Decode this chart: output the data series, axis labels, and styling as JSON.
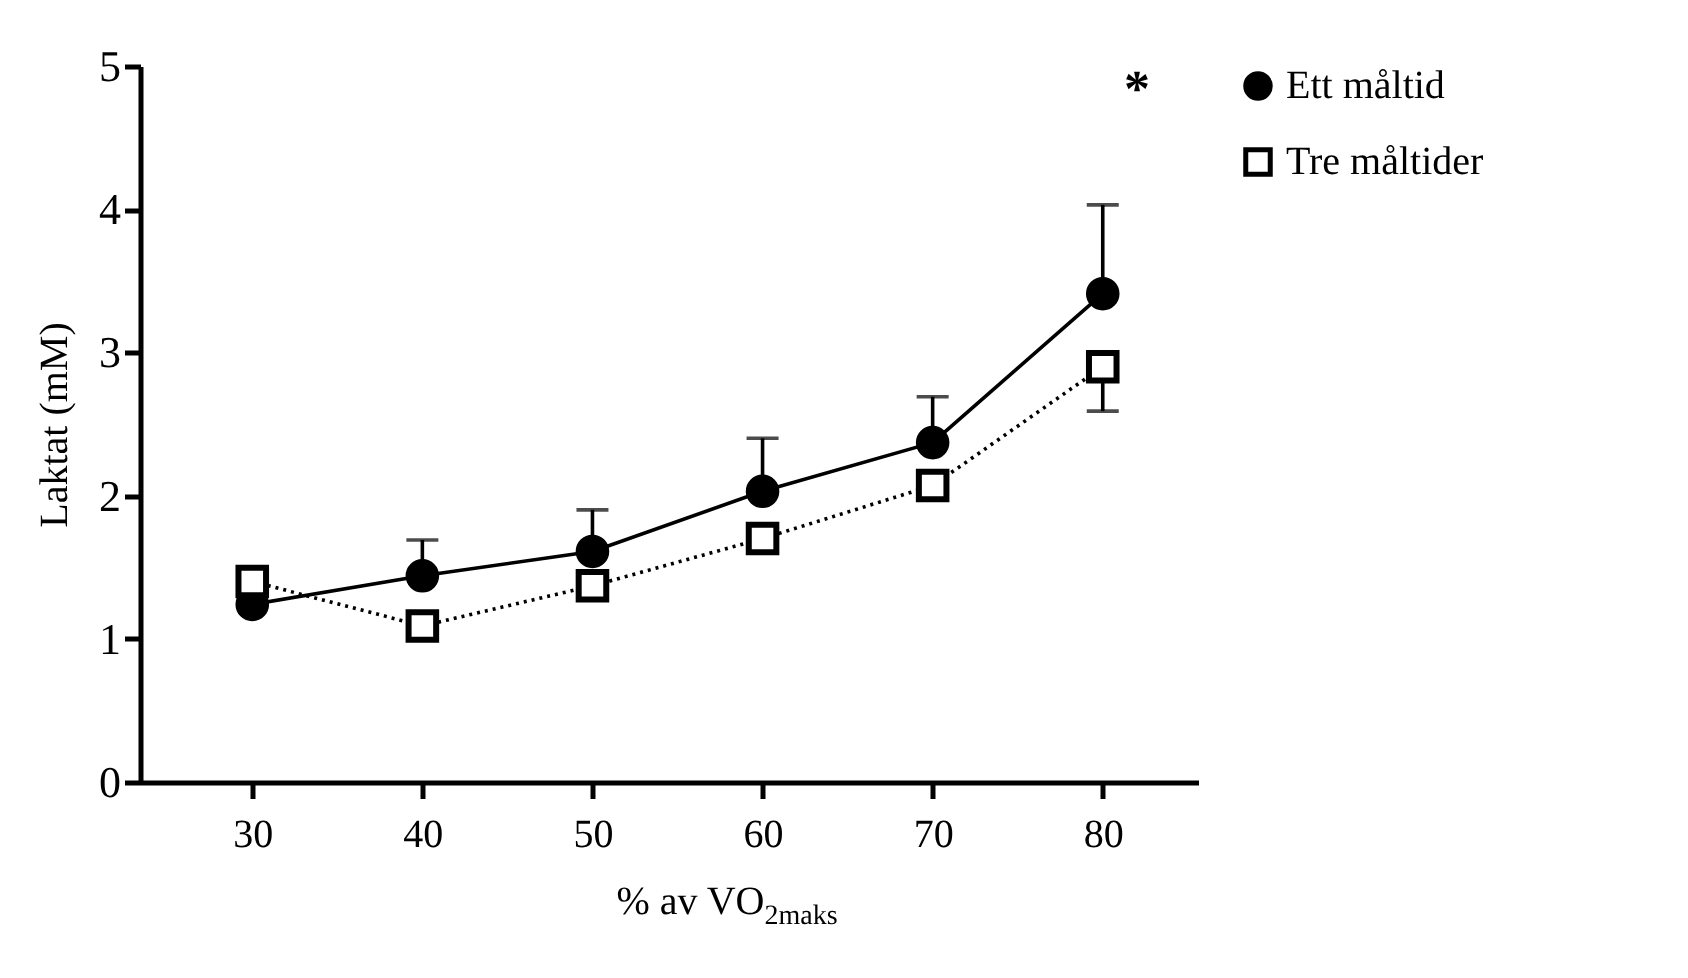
{
  "chart_data": {
    "type": "line",
    "xlabel": "% av VO$_{2maks}$",
    "ylabel": "Laktat (mM)",
    "x": [
      30,
      40,
      50,
      60,
      70,
      80
    ],
    "series": [
      {
        "name": "Ett måltid",
        "color": "#000000",
        "marker": "circle",
        "line_style": "solid",
        "values": [
          1.24,
          1.44,
          1.61,
          2.03,
          2.37,
          3.41
        ],
        "errors": [
          null,
          [
            1.44,
            1.69
          ],
          [
            1.61,
            1.9
          ],
          [
            2.03,
            2.4
          ],
          [
            2.37,
            2.69
          ],
          [
            3.41,
            4.03
          ]
        ]
      },
      {
        "name": "Tre måltider",
        "color": "#000000",
        "marker": "square",
        "line_style": "dotted",
        "values": [
          1.4,
          1.09,
          1.37,
          1.7,
          2.07,
          2.9
        ],
        "errors": [
          null,
          null,
          null,
          null,
          null,
          [
            2.59,
            2.9
          ]
        ]
      }
    ],
    "xlim": [
      23.4,
      85.6
    ],
    "xticks": [
      30,
      40,
      50,
      60,
      70,
      80
    ],
    "ylim": [
      0,
      5
    ],
    "yticks": [
      0,
      1,
      2,
      3,
      4,
      5
    ],
    "grid": false,
    "legend": "top right",
    "annotations": [
      "*"
    ]
  }
}
